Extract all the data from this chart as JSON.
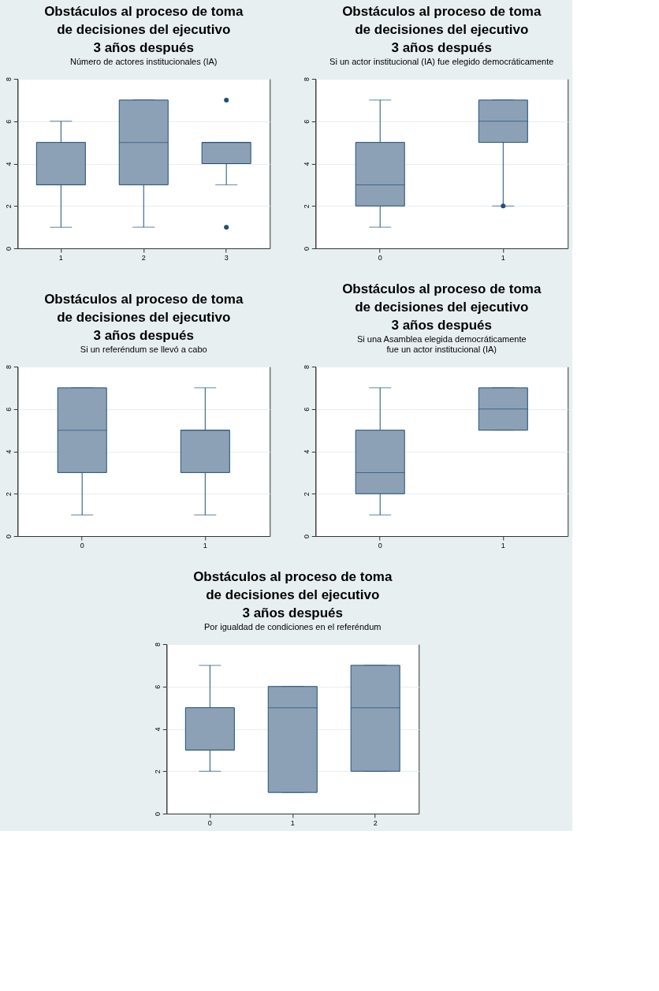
{
  "chart_data": [
    {
      "type": "box",
      "title": "Obstáculos al proceso de toma\nde decisiones del ejecutivo\n3 años después",
      "subtitle": "Número de actores institucionales (IA)",
      "categories": [
        "1",
        "2",
        "3"
      ],
      "ylim": [
        0,
        8
      ],
      "yticks": [
        0,
        2,
        4,
        6,
        8
      ],
      "grid": "y",
      "series": [
        {
          "color": "#8da1b6",
          "boxes": [
            {
              "low": 1,
              "q1": 3,
              "median": 3,
              "q3": 5,
              "high": 6
            },
            {
              "low": 1,
              "q1": 3,
              "median": 5,
              "q3": 7,
              "high": 7
            },
            {
              "low": 3,
              "q1": 4,
              "median": 5,
              "q3": 5,
              "high": 5,
              "outliers": [
                7,
                1
              ]
            }
          ]
        }
      ]
    },
    {
      "type": "box",
      "title": "Obstáculos al proceso de toma\nde decisiones del ejecutivo\n3 años después",
      "subtitle": "Si un actor institucional (IA) fue elegido democráticamente",
      "categories": [
        "0",
        "1"
      ],
      "ylim": [
        0,
        8
      ],
      "yticks": [
        0,
        2,
        4,
        6,
        8
      ],
      "grid": "y",
      "series": [
        {
          "color": "#8da1b6",
          "boxes": [
            {
              "low": 1,
              "q1": 2,
              "median": 3,
              "q3": 5,
              "high": 7
            },
            {
              "low": 2,
              "q1": 5,
              "median": 6,
              "q3": 7,
              "high": 7,
              "outliers": [
                2
              ]
            }
          ]
        }
      ]
    },
    {
      "type": "box",
      "title": "Obstáculos al proceso de toma\nde decisiones del ejecutivo\n3 años después",
      "subtitle": "Si un referéndum se llevó a cabo",
      "categories": [
        "0",
        "1"
      ],
      "ylim": [
        0,
        8
      ],
      "yticks": [
        0,
        2,
        4,
        6,
        8
      ],
      "grid": "y",
      "series": [
        {
          "color": "#8da1b6",
          "boxes": [
            {
              "low": 1,
              "q1": 3,
              "median": 5,
              "q3": 7,
              "high": 7
            },
            {
              "low": 1,
              "q1": 3,
              "median": 5,
              "q3": 5,
              "high": 7
            }
          ]
        }
      ]
    },
    {
      "type": "box",
      "title": "Obstáculos al proceso de toma\nde decisiones del ejecutivo\n3 años después",
      "subtitle": "Si una Asamblea elegida democráticamente\nfue un actor institucional (IA)",
      "categories": [
        "0",
        "1"
      ],
      "ylim": [
        0,
        8
      ],
      "yticks": [
        0,
        2,
        4,
        6,
        8
      ],
      "grid": "y",
      "series": [
        {
          "color": "#8da1b6",
          "boxes": [
            {
              "low": 1,
              "q1": 2,
              "median": 3,
              "q3": 5,
              "high": 7
            },
            {
              "low": 5,
              "q1": 5,
              "median": 6,
              "q3": 7,
              "high": 7
            }
          ]
        }
      ]
    },
    {
      "type": "box",
      "title": "Obstáculos al proceso de toma\nde decisiones del ejecutivo\n3 años después",
      "subtitle": "Por igualdad de condiciones en el referéndum",
      "categories": [
        "0",
        "1",
        "2"
      ],
      "ylim": [
        0,
        8
      ],
      "yticks": [
        0,
        2,
        4,
        6,
        8
      ],
      "grid": "y",
      "series": [
        {
          "color": "#8da1b6",
          "boxes": [
            {
              "low": 2,
              "q1": 3,
              "median": 3,
              "q3": 5,
              "high": 7
            },
            {
              "low": 1,
              "q1": 1,
              "median": 5,
              "q3": 6,
              "high": 6
            },
            {
              "low": 2,
              "q1": 2,
              "median": 5,
              "q3": 7,
              "high": 7
            }
          ]
        }
      ]
    }
  ]
}
